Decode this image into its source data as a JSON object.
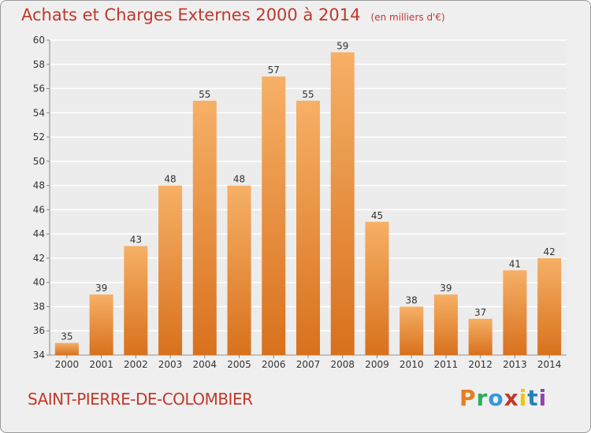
{
  "header": {
    "title": "Achats et Charges Externes 2000 à 2014",
    "subtitle": "(en milliers d'€)"
  },
  "footer": {
    "place": "SAINT-PIERRE-DE-COLOMBIER",
    "logo_text": "Proxiti",
    "logo_colors": [
      "#e67e22",
      "#27ae60",
      "#3498db",
      "#c0392b",
      "#f1c40f",
      "#2980b9",
      "#8e44ad"
    ]
  },
  "colors": {
    "bar": "#f0923a",
    "bar_light": "#f6b066",
    "bar_dark": "#d8711d",
    "title": "#c0392b",
    "grid": "#ffffff",
    "axis_text": "#333333"
  },
  "chart_data": {
    "type": "bar",
    "title": "Achats et Charges Externes 2000 à 2014",
    "subtitle": "(en milliers d'€)",
    "categories": [
      "2000",
      "2001",
      "2002",
      "2003",
      "2004",
      "2005",
      "2006",
      "2007",
      "2008",
      "2009",
      "2010",
      "2011",
      "2012",
      "2013",
      "2014"
    ],
    "values": [
      35,
      39,
      43,
      48,
      55,
      48,
      57,
      55,
      59,
      45,
      38,
      39,
      37,
      41,
      42
    ],
    "ylim": [
      34,
      60
    ],
    "yticks": [
      34,
      36,
      38,
      40,
      42,
      44,
      46,
      48,
      50,
      52,
      54,
      56,
      58,
      60
    ],
    "grid": true,
    "data_labels": true,
    "xlabel": "",
    "ylabel": ""
  }
}
